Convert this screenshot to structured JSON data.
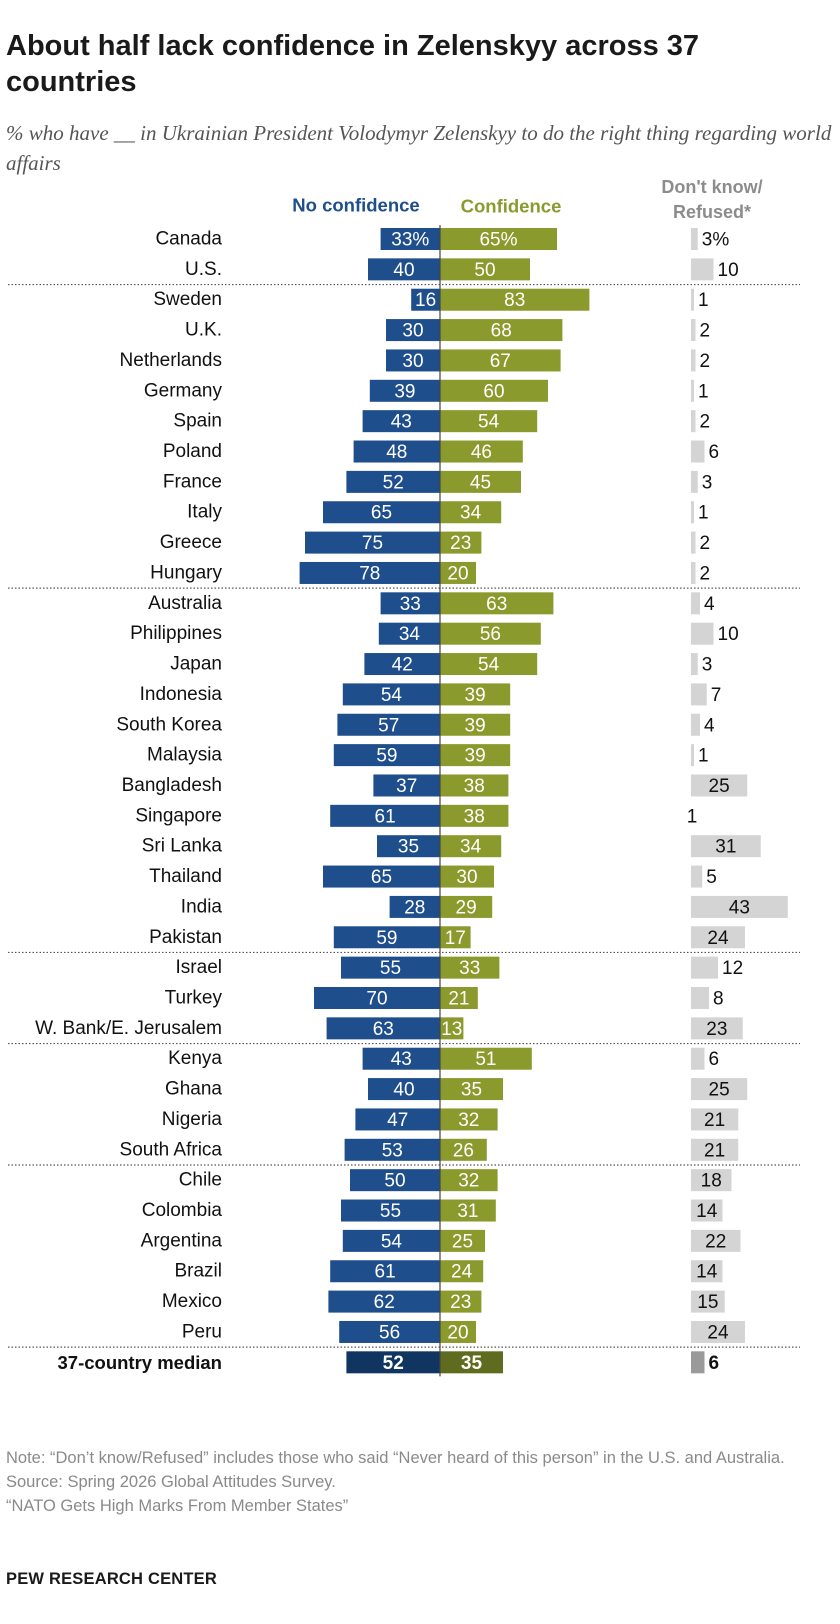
{
  "title": "About half lack confidence in Zelenskyy across 37 countries",
  "subtitle": "% who have __ in Ukrainian President Volodymyr Zelenskyy to do the right thing regarding world affairs",
  "footer": {
    "note": "Note: “Don’t know/Refused” includes those who said “Never heard of this person” in the U.S. and Australia.",
    "source": "Source: Spring 2026 Global Attitudes Survey.",
    "report": "“NATO Gets High Marks From Member States”",
    "brand": "PEW RESEARCH CENTER"
  },
  "chart_data": {
    "type": "bar",
    "orientation": "horizontal-diverging",
    "series": [
      {
        "name": "No confidence",
        "color": "#1f4e8c"
      },
      {
        "name": "Confidence",
        "color": "#8a9a2c"
      },
      {
        "name": "Don't know/ Refused*",
        "color": "#d4d4d4"
      }
    ],
    "rows": [
      {
        "country": "Canada",
        "no": 33,
        "conf": 65,
        "dk": 3,
        "no_label": "33%",
        "conf_label": "65%",
        "dk_label": "3%"
      },
      {
        "country": "U.S.",
        "no": 40,
        "conf": 50,
        "dk": 10
      },
      {
        "country": "Sweden",
        "no": 16,
        "conf": 83,
        "dk": 1,
        "separator_before": true
      },
      {
        "country": "U.K.",
        "no": 30,
        "conf": 68,
        "dk": 2
      },
      {
        "country": "Netherlands",
        "no": 30,
        "conf": 67,
        "dk": 2
      },
      {
        "country": "Germany",
        "no": 39,
        "conf": 60,
        "dk": 1
      },
      {
        "country": "Spain",
        "no": 43,
        "conf": 54,
        "dk": 2
      },
      {
        "country": "Poland",
        "no": 48,
        "conf": 46,
        "dk": 6
      },
      {
        "country": "France",
        "no": 52,
        "conf": 45,
        "dk": 3
      },
      {
        "country": "Italy",
        "no": 65,
        "conf": 34,
        "dk": 1
      },
      {
        "country": "Greece",
        "no": 75,
        "conf": 23,
        "dk": 2
      },
      {
        "country": "Hungary",
        "no": 78,
        "conf": 20,
        "dk": 2
      },
      {
        "country": "Australia",
        "no": 33,
        "conf": 63,
        "dk": 4,
        "separator_before": true
      },
      {
        "country": "Philippines",
        "no": 34,
        "conf": 56,
        "dk": 10
      },
      {
        "country": "Japan",
        "no": 42,
        "conf": 54,
        "dk": 3
      },
      {
        "country": "Indonesia",
        "no": 54,
        "conf": 39,
        "dk": 7
      },
      {
        "country": "South Korea",
        "no": 57,
        "conf": 39,
        "dk": 4
      },
      {
        "country": "Malaysia",
        "no": 59,
        "conf": 39,
        "dk": 1
      },
      {
        "country": "Bangladesh",
        "no": 37,
        "conf": 38,
        "dk": 25
      },
      {
        "country": "Singapore",
        "no": 61,
        "conf": 38,
        "dk": 1,
        "dk_bar": 0
      },
      {
        "country": "Sri Lanka",
        "no": 35,
        "conf": 34,
        "dk": 31
      },
      {
        "country": "Thailand",
        "no": 65,
        "conf": 30,
        "dk": 5
      },
      {
        "country": "India",
        "no": 28,
        "conf": 29,
        "dk": 43
      },
      {
        "country": "Pakistan",
        "no": 59,
        "conf": 17,
        "dk": 24
      },
      {
        "country": "Israel",
        "no": 55,
        "conf": 33,
        "dk": 12,
        "separator_before": true
      },
      {
        "country": "Turkey",
        "no": 70,
        "conf": 21,
        "dk": 8
      },
      {
        "country": "W. Bank/E. Jerusalem",
        "no": 63,
        "conf": 13,
        "dk": 23
      },
      {
        "country": "Kenya",
        "no": 43,
        "conf": 51,
        "dk": 6,
        "separator_before": true
      },
      {
        "country": "Ghana",
        "no": 40,
        "conf": 35,
        "dk": 25
      },
      {
        "country": "Nigeria",
        "no": 47,
        "conf": 32,
        "dk": 21
      },
      {
        "country": "South Africa",
        "no": 53,
        "conf": 26,
        "dk": 21
      },
      {
        "country": "Chile",
        "no": 50,
        "conf": 32,
        "dk": 18,
        "separator_before": true
      },
      {
        "country": "Colombia",
        "no": 55,
        "conf": 31,
        "dk": 14
      },
      {
        "country": "Argentina",
        "no": 54,
        "conf": 25,
        "dk": 22
      },
      {
        "country": "Brazil",
        "no": 61,
        "conf": 24,
        "dk": 14
      },
      {
        "country": "Mexico",
        "no": 62,
        "conf": 23,
        "dk": 15
      },
      {
        "country": "Peru",
        "no": 56,
        "conf": 20,
        "dk": 24
      },
      {
        "country": "37-country median",
        "no": 52,
        "conf": 35,
        "dk": 6,
        "separator_before": true,
        "median": true
      }
    ],
    "median_colors": {
      "no": "#0f3560",
      "conf": "#5f6b1e",
      "dk": "#9a9a9a"
    },
    "xlim": [
      0,
      100
    ],
    "grid": false,
    "legend": "top"
  }
}
